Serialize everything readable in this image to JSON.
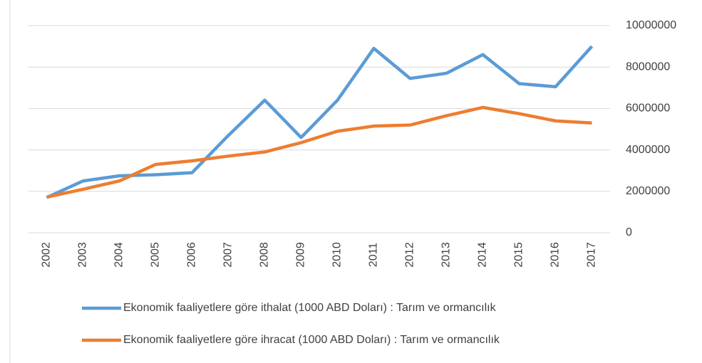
{
  "chart_data": {
    "type": "line",
    "categories": [
      "2002",
      "2003",
      "2004",
      "2005",
      "2006",
      "2007",
      "2008",
      "2009",
      "2010",
      "2011",
      "2012",
      "2013",
      "2014",
      "2015",
      "2016",
      "2017"
    ],
    "series": [
      {
        "name": "Ekonomik faaliyetlere göre ithalat (1000 ABD Doları) : Tarım ve ormancılık",
        "color": "#5b9bd5",
        "values": [
          1700000,
          2500000,
          2750000,
          2800000,
          2900000,
          4700000,
          6400000,
          4600000,
          6400000,
          8900000,
          7450000,
          7700000,
          8600000,
          7200000,
          7050000,
          9000000
        ]
      },
      {
        "name": "Ekonomik faaliyetlere göre ihracat (1000 ABD Doları) : Tarım ve ormancılık",
        "color": "#ed7d31",
        "values": [
          1720000,
          2100000,
          2500000,
          3300000,
          3470000,
          3700000,
          3900000,
          4350000,
          4900000,
          5150000,
          5200000,
          5650000,
          6050000,
          5750000,
          5400000,
          5300000
        ]
      }
    ],
    "ylim": [
      0,
      10000000
    ],
    "yticks": [
      0,
      2000000,
      4000000,
      6000000,
      8000000,
      10000000
    ],
    "grid": true,
    "y_axis_side": "right",
    "legend": "bottom"
  }
}
